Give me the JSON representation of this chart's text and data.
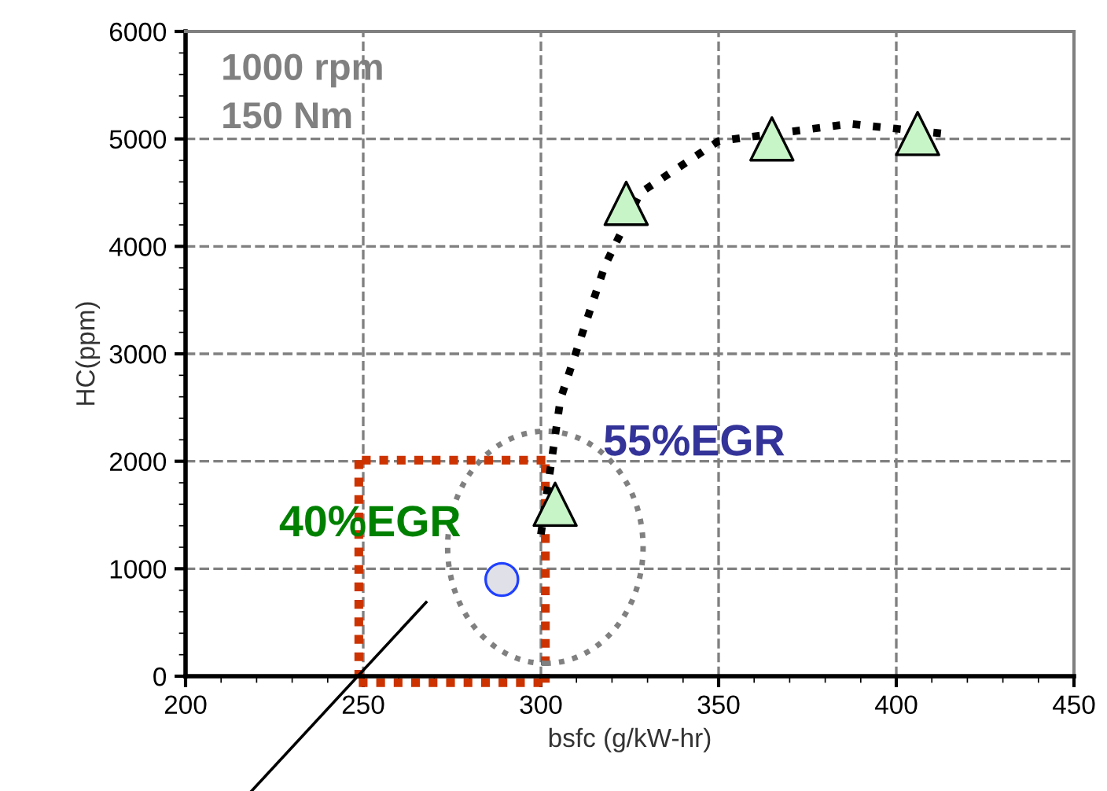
{
  "chart_data": {
    "type": "scatter",
    "xlabel": "bsfc (g/kW-hr)",
    "ylabel": "HC(ppm)",
    "xlim": [
      200,
      450
    ],
    "xticks": [
      200,
      250,
      300,
      350,
      400,
      450
    ],
    "ylim": [
      0,
      6000
    ],
    "yticks": [
      0,
      1000,
      2000,
      3000,
      4000,
      5000,
      6000
    ],
    "grid": true,
    "annotations": [
      "1000 rpm",
      "150 Nm",
      "55%EGR",
      {
        "text": "40%EGR",
        "x": 289,
        "y": 900
      }
    ],
    "series": [
      {
        "type": "line",
        "color": "#000000",
        "line_style": "dotted",
        "marker": "none",
        "x": [
          300,
          305.5,
          318,
          328,
          350,
          387,
          413
        ],
        "values": [
          1320,
          2580,
          3820,
          4500,
          4980,
          5140,
          5050
        ]
      },
      {
        "color": "#c8f5c8",
        "marker": "triangle",
        "x": [
          304,
          324,
          365,
          406
        ],
        "values": [
          1600,
          4400,
          5000,
          5050
        ]
      },
      {
        "color": "#e0e0e8",
        "marker": "circle",
        "x": [
          289
        ],
        "values": [
          900
        ]
      }
    ]
  }
}
